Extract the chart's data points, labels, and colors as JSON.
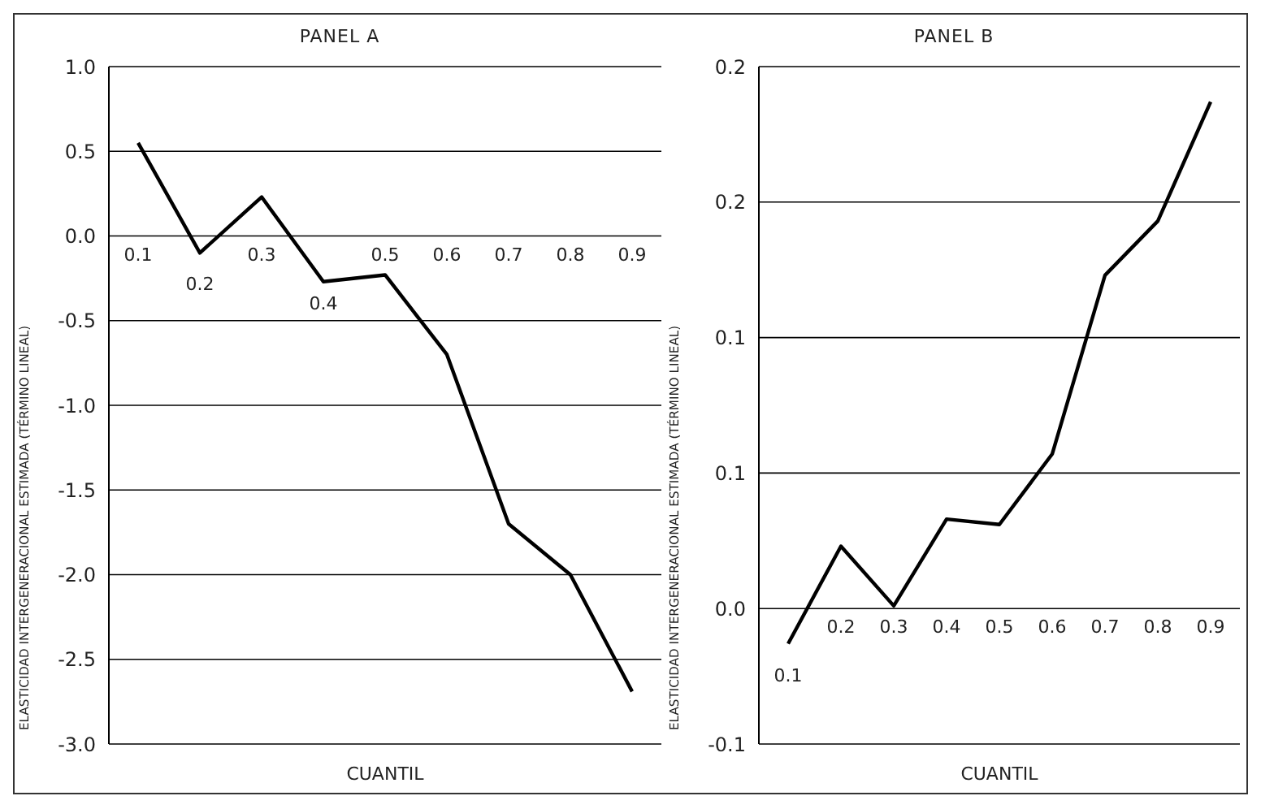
{
  "chart_data": [
    {
      "type": "line",
      "title": "PANEL A",
      "xlabel": "CUANTIL",
      "ylabel": "ELASTICIDAD INTERGENERACIONAL ESTIMADA (TÉRMINO LINEAL)",
      "categories": [
        "0.1",
        "0.2",
        "0.3",
        "0.4",
        "0.5",
        "0.6",
        "0.7",
        "0.8",
        "0.9"
      ],
      "values": [
        0.55,
        -0.1,
        0.23,
        -0.27,
        -0.23,
        -0.7,
        -1.7,
        -2.0,
        -2.69
      ],
      "color": "#000000",
      "ylim": [
        -3.0,
        1.0
      ],
      "yticks": [
        {
          "value": -3,
          "label": "-3.0"
        },
        {
          "value": -2.5,
          "label": "-2.5"
        },
        {
          "value": -2,
          "label": "-2.0"
        },
        {
          "value": -1.5,
          "label": "-1.5"
        },
        {
          "value": -1,
          "label": "-1.0"
        },
        {
          "value": -0.5,
          "label": "-0.5"
        },
        {
          "value": 0,
          "label": "0.0"
        },
        {
          "value": 0.5,
          "label": "0.5"
        },
        {
          "value": 1,
          "label": "1.0"
        }
      ],
      "grid": "y"
    },
    {
      "type": "line",
      "title": "PANEL B",
      "xlabel": "CUANTIL",
      "ylabel": "ELASTICIDAD INTERGENERACIONAL ESTIMADA (TÉRMINO LINEAL)",
      "categories": [
        "0.1",
        "0.2",
        "0.3",
        "0.4",
        "0.5",
        "0.6",
        "0.7",
        "0.8",
        "0.9"
      ],
      "values": [
        -0.013,
        0.023,
        0.001,
        0.033,
        0.031,
        0.057,
        0.123,
        0.143,
        0.187
      ],
      "color": "#000000",
      "ylim": [
        -0.05,
        0.2
      ],
      "yticks": [
        {
          "value": -0.05,
          "label": "-0.1"
        },
        {
          "value": 0,
          "label": "0.0"
        },
        {
          "value": 0.05,
          "label": "0.1"
        },
        {
          "value": 0.1,
          "label": "0.1"
        },
        {
          "value": 0.15,
          "label": "0.2"
        },
        {
          "value": 0.2,
          "label": "0.2"
        }
      ],
      "grid": "y"
    }
  ]
}
